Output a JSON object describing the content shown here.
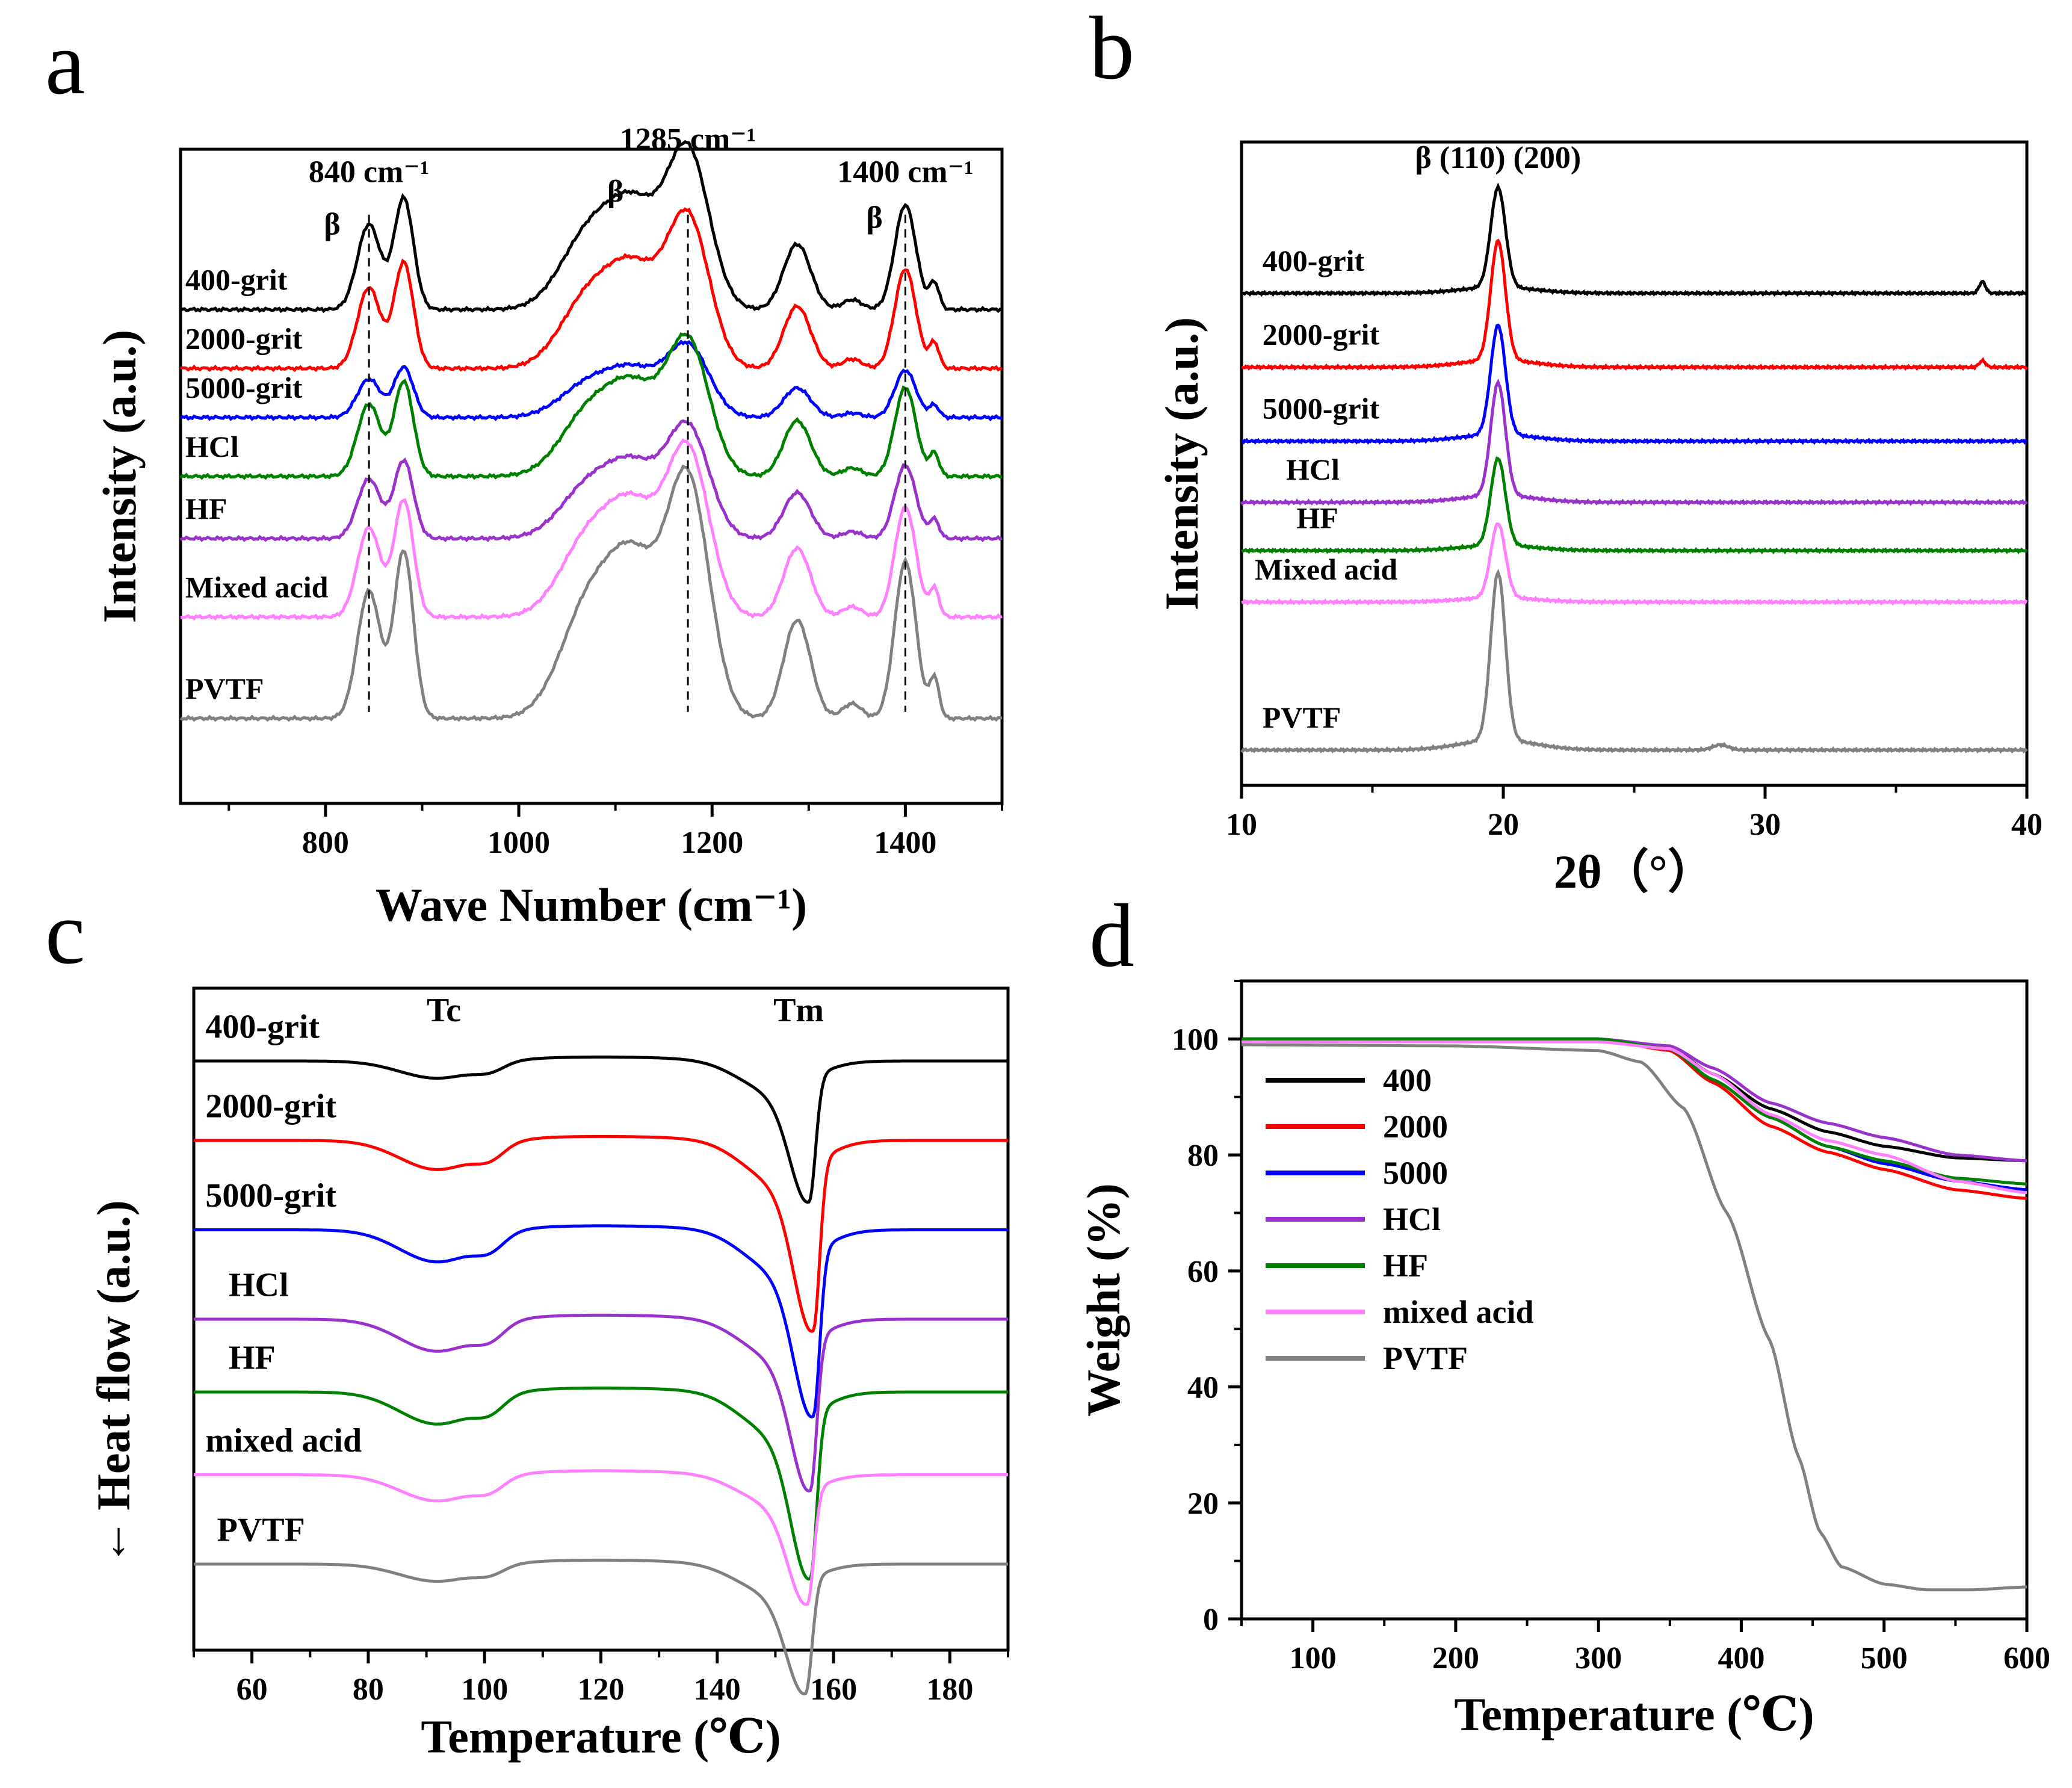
{
  "figure": {
    "panel_letters": [
      "a",
      "b",
      "c",
      "d"
    ]
  },
  "chart_data": [
    {
      "panel": "a",
      "type": "line",
      "title": "",
      "xlabel": "Wave Number (cm⁻¹)",
      "ylabel": "Intensity (a.u.)",
      "xlim": [
        650,
        1500
      ],
      "ylim": [
        0,
        100
      ],
      "xticks": [
        800,
        1000,
        1200,
        1400
      ],
      "grid": false,
      "legend": "inline labels on left",
      "annotations": [
        {
          "text": "840 cm⁻¹",
          "x": 845,
          "y": 95
        },
        {
          "text": "1285 cm⁻¹",
          "x": 1175,
          "y": 100
        },
        {
          "text": "1400 cm⁻¹",
          "x": 1400,
          "y": 95
        },
        {
          "text": "β",
          "x": 807,
          "y": 87
        },
        {
          "text": "β",
          "x": 1100,
          "y": 92
        },
        {
          "text": "β",
          "x": 1368,
          "y": 88
        }
      ],
      "reference_lines_x": [
        845,
        1175,
        1400
      ],
      "series": [
        {
          "name": "400-grit",
          "color": "#000000",
          "baseline": 75.5,
          "scale": 1.0
        },
        {
          "name": "2000-grit",
          "color": "#ff0000",
          "baseline": 66.5,
          "scale": 0.95
        },
        {
          "name": "5000-grit",
          "color": "#0000ff",
          "baseline": 59.0,
          "scale": 0.45
        },
        {
          "name": "HCl",
          "color": "#008000",
          "baseline": 50.0,
          "scale": 0.85
        },
        {
          "name": "HF",
          "color": "#9932cc",
          "baseline": 40.5,
          "scale": 0.7
        },
        {
          "name": "Mixed acid",
          "color": "#ff80ff",
          "baseline": 28.5,
          "scale": 1.05
        },
        {
          "name": "PVTF",
          "color": "#808080",
          "baseline": 13.0,
          "scale": 1.5
        }
      ],
      "peaks": [
        {
          "center": 845,
          "height": 13,
          "width": 12
        },
        {
          "center": 881,
          "height": 17,
          "width": 10
        },
        {
          "center": 1075,
          "height": 12,
          "width": 30
        },
        {
          "center": 1122,
          "height": 13,
          "width": 25
        },
        {
          "center": 1175,
          "height": 24,
          "width": 22
        },
        {
          "center": 1288,
          "height": 10,
          "width": 14
        },
        {
          "center": 1345,
          "height": 1.5,
          "width": 10
        },
        {
          "center": 1400,
          "height": 16,
          "width": 11
        },
        {
          "center": 1430,
          "height": 4,
          "width": 5
        }
      ]
    },
    {
      "panel": "b",
      "type": "line",
      "title": "",
      "xlabel": "2θ（°）",
      "ylabel": "Intensity (a.u.)",
      "xlim": [
        10,
        40
      ],
      "ylim": [
        0,
        100
      ],
      "xticks": [
        10,
        20,
        30,
        40
      ],
      "grid": false,
      "legend": "inline labels on left",
      "annotations": [
        {
          "text": "β (110) (200)",
          "x": 19.8,
          "y": 96
        }
      ],
      "series": [
        {
          "name": "400-grit",
          "color": "#000000",
          "baseline": 76.5,
          "peak": 15.5
        },
        {
          "name": "2000-grit",
          "color": "#ff0000",
          "baseline": 65.0,
          "peak": 18.5
        },
        {
          "name": "5000-grit",
          "color": "#0000ff",
          "baseline": 53.5,
          "peak": 17.0
        },
        {
          "name": "HCl",
          "color": "#9932cc",
          "baseline": 44.0,
          "peak": 17.5
        },
        {
          "name": "HF",
          "color": "#008000",
          "baseline": 36.5,
          "peak": 13.5
        },
        {
          "name": "Mixed acid",
          "color": "#ff80ff",
          "baseline": 28.5,
          "peak": 11.5
        },
        {
          "name": "PVTF",
          "color": "#808080",
          "baseline": 5.5,
          "peak": 26.0
        }
      ],
      "peak_center": 19.8
    },
    {
      "panel": "c",
      "type": "line",
      "title": "",
      "xlabel": "Temperature (℃)",
      "ylabel": "Heat flow (a.u.)",
      "ylabel_arrow": "←",
      "xlim": [
        50,
        190
      ],
      "ylim": [
        0,
        100
      ],
      "xticks": [
        60,
        80,
        100,
        120,
        140,
        160,
        180
      ],
      "grid": false,
      "legend": "inline labels on left",
      "annotations": [
        {
          "text": "Tc",
          "x": 93,
          "y": 95
        },
        {
          "text": "Tm",
          "x": 154,
          "y": 95
        }
      ],
      "series": [
        {
          "name": "400-grit",
          "color": "#000000",
          "baseline": 89.0,
          "tc_depth": 3.0,
          "tm_depth": 18.5,
          "tm_center": 155.8
        },
        {
          "name": "2000-grit",
          "color": "#ff0000",
          "baseline": 77.0,
          "tc_depth": 5.0,
          "tm_depth": 25.0,
          "tm_center": 156.5
        },
        {
          "name": "5000-grit",
          "color": "#0000ff",
          "baseline": 63.5,
          "tc_depth": 5.5,
          "tm_depth": 24.5,
          "tm_center": 156.5
        },
        {
          "name": "HCl",
          "color": "#9932cc",
          "baseline": 50.0,
          "tc_depth": 5.5,
          "tm_depth": 22.5,
          "tm_center": 156.0
        },
        {
          "name": "HF",
          "color": "#008000",
          "baseline": 39.0,
          "tc_depth": 5.5,
          "tm_depth": 24.5,
          "tm_center": 156.0
        },
        {
          "name": "mixed acid",
          "color": "#ff80ff",
          "baseline": 26.5,
          "tc_depth": 4.5,
          "tm_depth": 17.0,
          "tm_center": 155.5
        },
        {
          "name": "PVTF",
          "color": "#808080",
          "baseline": 13.0,
          "tc_depth": 3.0,
          "tm_depth": 17.0,
          "tm_center": 155.2
        }
      ]
    },
    {
      "panel": "d",
      "type": "line",
      "title": "",
      "xlabel": "Temperature (℃)",
      "ylabel": "Weight (%)",
      "xlim": [
        50,
        600
      ],
      "ylim": [
        0,
        110
      ],
      "xticks": [
        100,
        200,
        300,
        400,
        500,
        600
      ],
      "yticks": [
        0,
        20,
        40,
        60,
        80,
        100
      ],
      "grid": false,
      "legend": "upper-left",
      "series": [
        {
          "name": "400",
          "color": "#000000",
          "x": [
            50,
            300,
            350,
            380,
            420,
            460,
            500,
            550,
            600
          ],
          "values": [
            100,
            100,
            98.5,
            94,
            88,
            84,
            81.5,
            79.5,
            79
          ]
        },
        {
          "name": "2000",
          "color": "#ff0000",
          "x": [
            50,
            300,
            350,
            380,
            420,
            460,
            500,
            550,
            600
          ],
          "values": [
            100,
            100,
            98,
            92.5,
            85,
            80.5,
            77.5,
            74,
            72.5
          ]
        },
        {
          "name": "5000",
          "color": "#0000ff",
          "x": [
            50,
            300,
            350,
            380,
            420,
            460,
            500,
            550,
            600
          ],
          "values": [
            100,
            100,
            98.3,
            93,
            86.5,
            81.5,
            78.5,
            75.5,
            74
          ]
        },
        {
          "name": "HCl",
          "color": "#9932cc",
          "x": [
            50,
            300,
            350,
            380,
            420,
            460,
            500,
            550,
            600
          ],
          "values": [
            100,
            100,
            98.8,
            95,
            89,
            85.5,
            83,
            80,
            79
          ]
        },
        {
          "name": "HF",
          "color": "#008000",
          "x": [
            50,
            300,
            350,
            380,
            420,
            460,
            500,
            550,
            600
          ],
          "values": [
            100,
            100,
            98.3,
            93,
            86.5,
            81.5,
            79,
            76,
            75
          ]
        },
        {
          "name": "mixed acid",
          "color": "#ff80ff",
          "x": [
            50,
            300,
            350,
            380,
            420,
            460,
            500,
            550,
            600
          ],
          "values": [
            99.5,
            99.5,
            98.3,
            94,
            87,
            82.5,
            80,
            75.5,
            73.5
          ]
        },
        {
          "name": "PVTF",
          "color": "#808080",
          "x": [
            50,
            200,
            300,
            330,
            360,
            390,
            420,
            440,
            455,
            470,
            500,
            530,
            560,
            600
          ],
          "values": [
            99,
            98.8,
            98,
            96,
            88,
            70,
            48,
            28,
            15,
            9,
            6,
            5,
            5,
            5.5
          ]
        }
      ]
    }
  ]
}
